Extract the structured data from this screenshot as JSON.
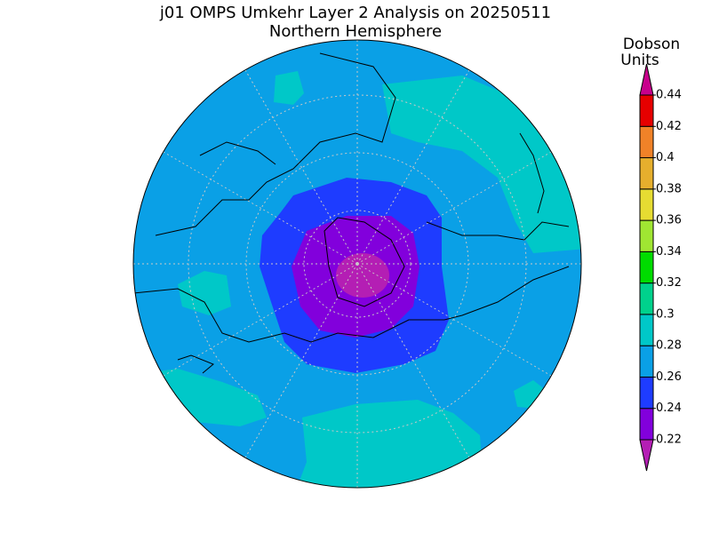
{
  "title": "j01 OMPS Umkehr Layer 2 Analysis on 20250511",
  "subtitle": "Northern Hemisphere",
  "colorbar": {
    "label": [
      "Dobson",
      "Units"
    ],
    "ticks": [
      0.22,
      0.24,
      0.26,
      0.28,
      0.3,
      0.32,
      0.34,
      0.36,
      0.38,
      0.4,
      0.42,
      0.44
    ],
    "colors": [
      "#b41eb4",
      "#8200dc",
      "#1e3cff",
      "#0aa0e6",
      "#00c8c8",
      "#00d28c",
      "#00dc00",
      "#a0e632",
      "#e6dc32",
      "#e6af2d",
      "#f08228",
      "#e60000",
      "#c8008c"
    ]
  }
}
